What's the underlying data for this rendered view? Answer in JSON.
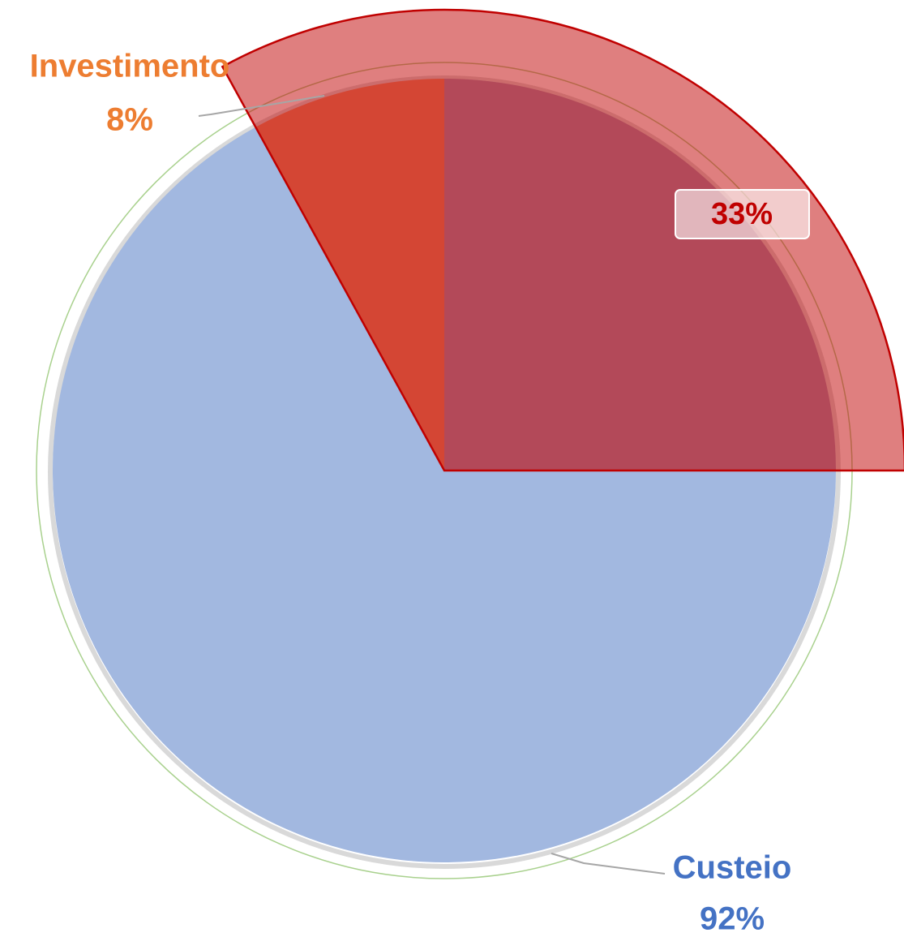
{
  "chart_data": {
    "type": "pie",
    "categories": [
      "Investimento",
      "Custeio"
    ],
    "values": [
      8,
      92
    ],
    "value_labels": [
      "8%",
      "92%"
    ],
    "colors": [
      "#f4b183",
      "#a2b8e0"
    ],
    "label_colors": [
      "#ed7d31",
      "#4472c4"
    ],
    "highlight": {
      "value": 33,
      "value_label": "33%",
      "color": "#c00000"
    }
  }
}
